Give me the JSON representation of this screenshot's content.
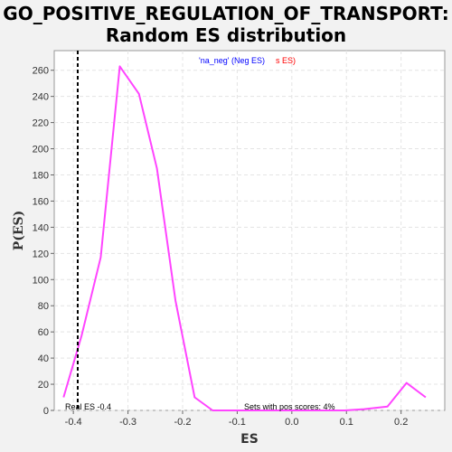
{
  "chart_data": {
    "type": "line",
    "title_line1": "GO_POSITIVE_REGULATION_OF_TRANSPORT:",
    "title_line2": "Random ES distribution",
    "xlabel": "ES",
    "ylabel": "P(ES)",
    "xlim": [
      -0.435,
      0.28
    ],
    "ylim": [
      0,
      275
    ],
    "xticks": [
      -0.4,
      -0.3,
      -0.2,
      -0.1,
      0.0,
      0.1,
      0.2
    ],
    "xtick_labels": [
      "-0.4",
      "-0.3",
      "-0.2",
      "-0.1",
      "0.0",
      "0.1",
      "0.2"
    ],
    "yticks": [
      0,
      20,
      40,
      60,
      80,
      100,
      120,
      140,
      160,
      180,
      200,
      220,
      240,
      260
    ],
    "grid": true,
    "series": [
      {
        "color": "#ff44ff",
        "x": [
          -0.418,
          -0.385,
          -0.35,
          -0.315,
          -0.28,
          -0.247,
          -0.213,
          -0.178,
          -0.145,
          -0.11,
          -0.075,
          -0.04,
          -0.005,
          0.028,
          0.062,
          0.097,
          0.132,
          0.175,
          0.21,
          0.245
        ],
        "y": [
          10,
          57,
          117,
          263,
          242,
          185,
          84,
          10,
          0,
          0,
          0,
          0,
          0,
          0,
          0,
          0,
          1,
          3,
          21,
          10
        ]
      }
    ],
    "real_es": {
      "x": -0.392,
      "label": "Real ES -0.4",
      "color": "#000000"
    },
    "legend": {
      "text_blue": "'na_neg' (Neg ES)",
      "text_red": "s ES)",
      "color_blue": "#0000ff",
      "color_red": "#ff0000"
    },
    "annotation": "Sets with pos scores: 4%"
  }
}
